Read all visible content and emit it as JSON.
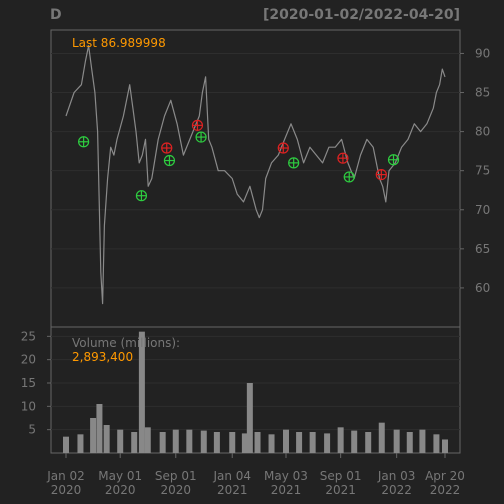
{
  "chart_data": [
    {
      "type": "line",
      "panel": "price",
      "title": "D",
      "subtitle": "[2020-01-02/2022-04-20]",
      "last_label": "Last 86.989998",
      "ylim": [
        55,
        93
      ],
      "y_ticks": [
        60,
        65,
        70,
        75,
        80,
        85,
        90
      ],
      "grid": true,
      "y_axis_side": "right",
      "x_range": [
        "2020-01-02",
        "2022-04-20"
      ],
      "series": [
        {
          "name": "",
          "x": [
            "2020-01-02",
            "2020-01-20",
            "2020-02-05",
            "2020-02-14",
            "2020-02-21",
            "2020-02-28",
            "2020-03-06",
            "2020-03-12",
            "2020-03-16",
            "2020-03-19",
            "2020-03-23",
            "2020-03-27",
            "2020-04-03",
            "2020-04-10",
            "2020-04-17",
            "2020-04-24",
            "2020-05-08",
            "2020-05-22",
            "2020-05-29",
            "2020-06-05",
            "2020-06-12",
            "2020-06-19",
            "2020-06-26",
            "2020-07-02",
            "2020-07-10",
            "2020-07-24",
            "2020-08-07",
            "2020-08-21",
            "2020-09-04",
            "2020-09-18",
            "2020-10-02",
            "2020-10-16",
            "2020-10-23",
            "2020-10-30",
            "2020-11-06",
            "2020-11-13",
            "2020-11-20",
            "2020-12-04",
            "2020-12-18",
            "2021-01-04",
            "2021-01-15",
            "2021-01-29",
            "2021-02-12",
            "2021-02-26",
            "2021-03-05",
            "2021-03-12",
            "2021-03-19",
            "2021-04-01",
            "2021-04-16",
            "2021-04-30",
            "2021-05-14",
            "2021-05-28",
            "2021-06-11",
            "2021-06-25",
            "2021-07-09",
            "2021-07-23",
            "2021-08-06",
            "2021-08-20",
            "2021-09-03",
            "2021-09-17",
            "2021-10-01",
            "2021-10-15",
            "2021-10-29",
            "2021-11-12",
            "2021-11-26",
            "2021-12-03",
            "2021-12-10",
            "2021-12-17",
            "2021-12-31",
            "2022-01-14",
            "2022-01-28",
            "2022-02-11",
            "2022-02-25",
            "2022-03-11",
            "2022-03-18",
            "2022-03-25",
            "2022-04-01",
            "2022-04-08",
            "2022-04-14",
            "2022-04-20"
          ],
          "y": [
            82,
            85,
            86,
            89,
            91,
            88,
            85,
            80,
            70,
            62,
            58,
            68,
            74,
            78,
            77,
            79,
            82,
            86,
            83,
            80,
            76,
            77,
            79,
            73,
            74,
            79,
            82,
            84,
            81,
            77,
            79,
            81,
            82,
            85,
            87,
            79,
            78,
            75,
            75,
            74,
            72,
            71,
            73,
            70,
            69,
            70,
            74,
            76,
            77,
            79,
            81,
            79,
            76,
            78,
            77,
            76,
            78,
            78,
            79,
            76,
            74,
            77,
            79,
            78,
            74,
            73,
            71,
            75,
            76,
            78,
            79,
            81,
            80,
            81,
            82,
            83,
            85,
            86,
            88,
            87
          ]
        }
      ],
      "markers": [
        {
          "type": "buy",
          "color": "#2ecc40",
          "x": "2020-02-10",
          "y": 78.7
        },
        {
          "type": "buy",
          "color": "#2ecc40",
          "x": "2020-06-17",
          "y": 71.8
        },
        {
          "type": "sell",
          "color": "#dd2222",
          "x": "2020-08-12",
          "y": 77.9
        },
        {
          "type": "buy",
          "color": "#2ecc40",
          "x": "2020-08-18",
          "y": 76.3
        },
        {
          "type": "sell",
          "color": "#dd2222",
          "x": "2020-10-19",
          "y": 80.8
        },
        {
          "type": "buy",
          "color": "#2ecc40",
          "x": "2020-10-27",
          "y": 79.3
        },
        {
          "type": "sell",
          "color": "#dd2222",
          "x": "2021-04-27",
          "y": 77.9
        },
        {
          "type": "buy",
          "color": "#2ecc40",
          "x": "2021-05-20",
          "y": 76.0
        },
        {
          "type": "sell",
          "color": "#dd2222",
          "x": "2021-09-06",
          "y": 76.6
        },
        {
          "type": "buy",
          "color": "#2ecc40",
          "x": "2021-09-20",
          "y": 74.2
        },
        {
          "type": "sell",
          "color": "#dd2222",
          "x": "2021-11-30",
          "y": 74.5
        },
        {
          "type": "buy",
          "color": "#2ecc40",
          "x": "2021-12-27",
          "y": 76.4
        }
      ]
    },
    {
      "type": "bar",
      "panel": "volume",
      "ylabel": "Volume (millions):",
      "last_label": "2,893,400",
      "ylim": [
        0,
        27
      ],
      "y_ticks": [
        5,
        10,
        15,
        20,
        25
      ],
      "y_axis_side": "left",
      "grid": true,
      "x_tick_labels": [
        {
          "date": "2020-01-02",
          "line1": "Jan 02",
          "line2": "2020"
        },
        {
          "date": "2020-05-01",
          "line1": "May 01",
          "line2": "2020"
        },
        {
          "date": "2020-09-01",
          "line1": "Sep 01",
          "line2": "2020"
        },
        {
          "date": "2021-01-04",
          "line1": "Jan 04",
          "line2": "2021"
        },
        {
          "date": "2021-05-03",
          "line1": "May 03",
          "line2": "2021"
        },
        {
          "date": "2021-09-01",
          "line1": "Sep 01",
          "line2": "2021"
        },
        {
          "date": "2022-01-03",
          "line1": "Jan 03",
          "line2": "2022"
        },
        {
          "date": "2022-04-20",
          "line1": "Apr 20",
          "line2": "2022"
        }
      ],
      "x": [
        "2020-01-02",
        "2020-02-03",
        "2020-03-02",
        "2020-03-16",
        "2020-04-01",
        "2020-05-01",
        "2020-06-01",
        "2020-06-18",
        "2020-07-01",
        "2020-08-03",
        "2020-09-01",
        "2020-10-01",
        "2020-11-02",
        "2020-12-01",
        "2021-01-04",
        "2021-02-01",
        "2021-02-12",
        "2021-03-01",
        "2021-04-01",
        "2021-05-03",
        "2021-06-01",
        "2021-07-01",
        "2021-08-02",
        "2021-09-01",
        "2021-10-01",
        "2021-11-01",
        "2021-12-01",
        "2022-01-03",
        "2022-02-01",
        "2022-03-01",
        "2022-04-01",
        "2022-04-20"
      ],
      "values": [
        3.5,
        4.0,
        7.5,
        10.5,
        6.0,
        5.0,
        4.5,
        26.0,
        5.5,
        4.5,
        5.0,
        5.0,
        4.8,
        4.5,
        4.5,
        4.2,
        15.0,
        4.5,
        4.0,
        5.0,
        4.5,
        4.5,
        4.2,
        5.5,
        4.8,
        4.5,
        6.5,
        5.0,
        4.5,
        5.0,
        4.0,
        2.9
      ]
    }
  ]
}
